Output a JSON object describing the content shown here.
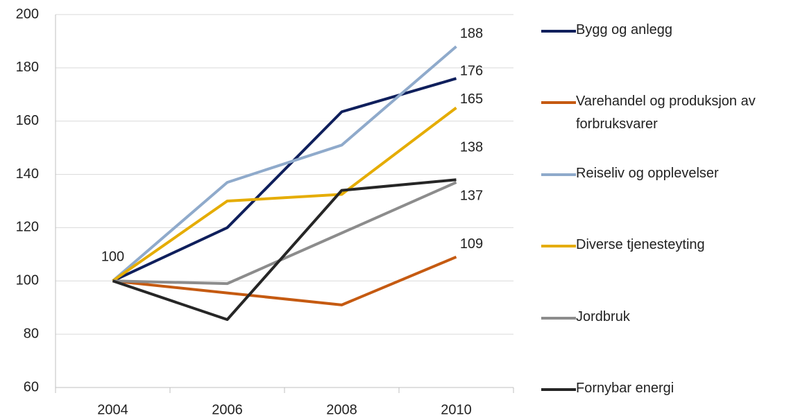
{
  "chart_data": {
    "type": "line",
    "categories": [
      "2004",
      "2006",
      "2008",
      "2010"
    ],
    "series": [
      {
        "name": "Bygg og anlegg",
        "color": "#0f1f5c",
        "values": [
          100,
          120,
          163.5,
          176
        ]
      },
      {
        "name": "Varehandel og produksjon av forbruksvarer",
        "color": "#c55a11",
        "values": [
          100,
          95.5,
          91,
          109
        ]
      },
      {
        "name": "Reiseliv og opplevelser",
        "color": "#8faacb",
        "values": [
          100,
          137,
          151,
          188
        ]
      },
      {
        "name": "Diverse tjenesteyting",
        "color": "#e5ac00",
        "values": [
          100,
          130,
          132.5,
          165
        ]
      },
      {
        "name": "Jordbruk",
        "color": "#8c8c8c",
        "values": [
          100,
          99,
          118,
          137
        ]
      },
      {
        "name": "Fornybar energi",
        "color": "#262626",
        "values": [
          100,
          85.5,
          134,
          138
        ]
      }
    ],
    "ylim": [
      60,
      200
    ],
    "yticks": [
      60,
      80,
      100,
      120,
      140,
      160,
      180,
      200
    ],
    "grid": true
  }
}
